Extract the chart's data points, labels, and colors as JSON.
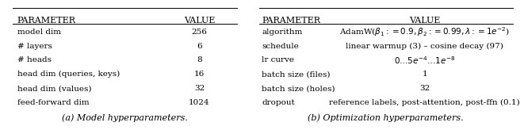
{
  "left_table": {
    "header": [
      "PARAMETER",
      "VALUE"
    ],
    "rows": [
      [
        "model dim",
        "256"
      ],
      [
        "# layers",
        "6"
      ],
      [
        "# heads",
        "8"
      ],
      [
        "head dim (queries, keys)",
        "16"
      ],
      [
        "head dim (values)",
        "32"
      ],
      [
        "feed-forward dim",
        "1024"
      ]
    ],
    "caption": "(a) Model hyperparameters."
  },
  "right_table": {
    "header": [
      "PARAMETER",
      "VALUE"
    ],
    "rows": [
      [
        "algorithm",
        "AdamW($\\beta_1 := 0.9, \\beta_2 := 0.99, \\lambda := 1e^{-2}$)"
      ],
      [
        "schedule",
        "linear warmup (3) – cosine decay (97)"
      ],
      [
        "lr curve",
        "$0\\ldots5e^{-4}\\ldots1e^{-8}$"
      ],
      [
        "batch size (files)",
        "1"
      ],
      [
        "batch size (holes)",
        "32"
      ],
      [
        "dropout",
        "reference labels, post-attention, post-ffn (0.1)"
      ]
    ],
    "caption": "(b) Optimization hyperparameters."
  },
  "background_color": "#ffffff",
  "text_color": "#000000",
  "header_fontsize": 8.0,
  "body_fontsize": 7.5,
  "caption_fontsize": 8.0
}
